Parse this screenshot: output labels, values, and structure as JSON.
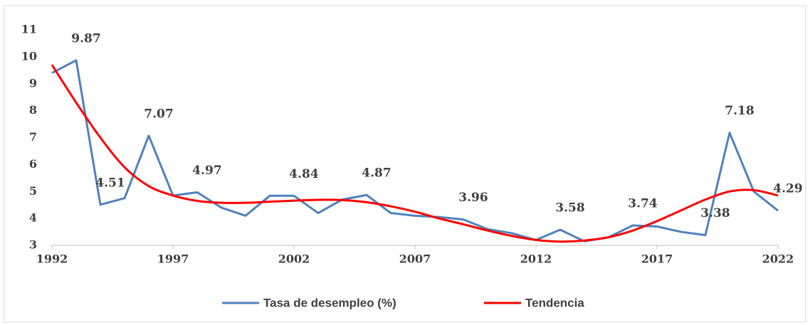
{
  "chart_data": {
    "type": "line",
    "x": [
      1992,
      1993,
      1994,
      1995,
      1996,
      1997,
      1998,
      1999,
      2000,
      2001,
      2002,
      2003,
      2004,
      2005,
      2006,
      2007,
      2008,
      2009,
      2010,
      2011,
      2012,
      2013,
      2014,
      2015,
      2016,
      2017,
      2018,
      2019,
      2020,
      2021,
      2022
    ],
    "series": [
      {
        "name": "Tasa de desempleo (%)",
        "color": "#4f81bd",
        "values": [
          9.4,
          9.87,
          4.51,
          4.75,
          7.07,
          4.85,
          4.97,
          4.4,
          4.1,
          4.84,
          4.84,
          4.2,
          4.7,
          4.87,
          4.2,
          4.1,
          4.05,
          3.96,
          3.6,
          3.45,
          3.2,
          3.58,
          3.15,
          3.3,
          3.74,
          3.7,
          3.5,
          3.38,
          7.18,
          5.0,
          4.29
        ],
        "value_labels": [
          null,
          "9.87",
          "4.51",
          null,
          "7.07",
          null,
          "4.97",
          null,
          null,
          null,
          "4.84",
          null,
          null,
          "4.87",
          null,
          null,
          null,
          "3.96",
          null,
          null,
          null,
          "3.58",
          null,
          null,
          "3.74",
          null,
          null,
          "3.38",
          "7.18",
          null,
          "4.29"
        ]
      },
      {
        "name": "Tendencia",
        "color": "#ff0000",
        "values": [
          9.7,
          8.3,
          7.0,
          5.9,
          5.2,
          4.85,
          4.65,
          4.58,
          4.58,
          4.62,
          4.66,
          4.69,
          4.68,
          4.6,
          4.45,
          4.25,
          4.0,
          3.78,
          3.55,
          3.35,
          3.2,
          3.14,
          3.18,
          3.3,
          3.55,
          3.9,
          4.3,
          4.7,
          5.0,
          5.05,
          4.85
        ]
      }
    ],
    "xlim": [
      1992,
      2022
    ],
    "xticks": [
      1992,
      1997,
      2002,
      2007,
      2012,
      2017,
      2022
    ],
    "ylim": [
      3,
      11
    ],
    "yticks": [
      3,
      4,
      5,
      6,
      7,
      8,
      9,
      10,
      11
    ],
    "grid": false,
    "legend": "bottom"
  }
}
